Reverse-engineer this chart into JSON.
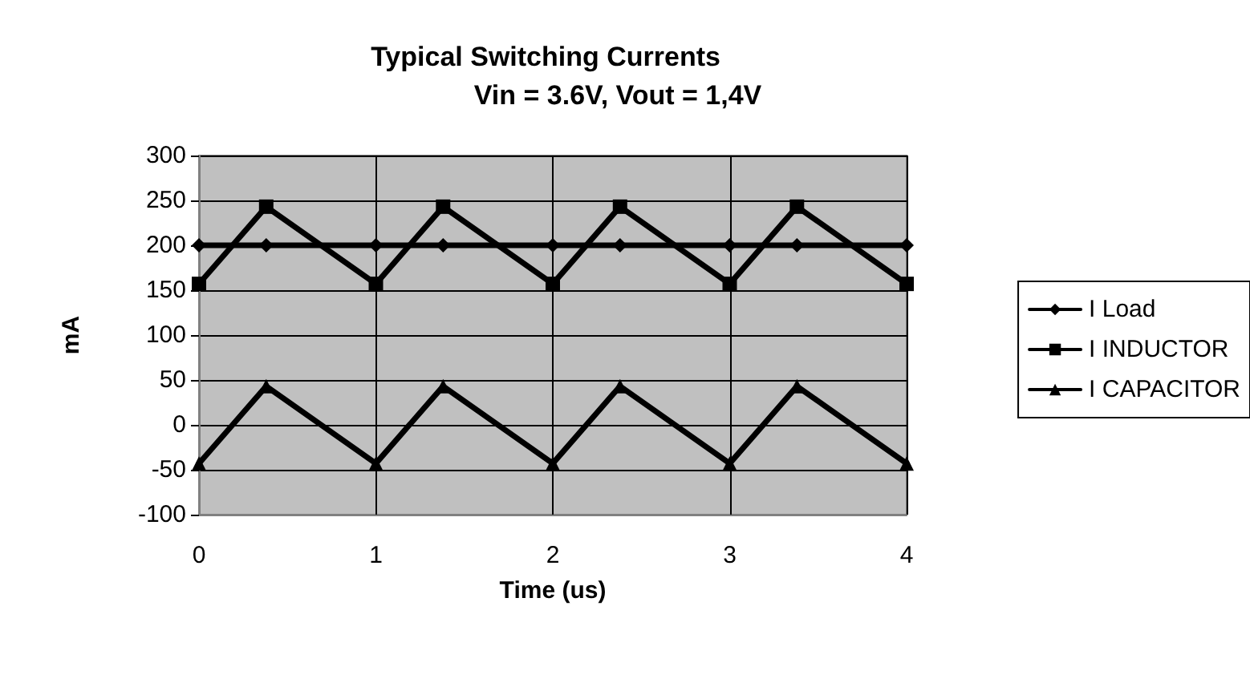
{
  "chart_data": {
    "type": "line",
    "title": "Typical Switching Currents",
    "subtitle": "Vin = 3.6V, Vout = 1,4V",
    "xlabel": "Time (us)",
    "ylabel": "mA",
    "x": [
      0,
      0.38,
      1,
      1.38,
      2,
      2.38,
      3,
      3.38,
      4
    ],
    "series": [
      {
        "name": "I Load",
        "color": "#000000",
        "marker": "diamond",
        "values": [
          200,
          200,
          200,
          200,
          200,
          200,
          200,
          200,
          200
        ]
      },
      {
        "name": "I INDUCTOR",
        "color": "#000000",
        "marker": "square",
        "values": [
          157,
          243,
          157,
          243,
          157,
          243,
          157,
          243,
          157
        ]
      },
      {
        "name": "I CAPACITOR",
        "color": "#000000",
        "marker": "triangle",
        "values": [
          -43,
          43,
          -43,
          43,
          -43,
          43,
          -43,
          43,
          -43
        ]
      }
    ],
    "xlim": [
      0,
      4
    ],
    "xticks": [
      0,
      1,
      2,
      3,
      4
    ],
    "ylim": [
      -100,
      300
    ],
    "yticks": [
      -100,
      -50,
      0,
      50,
      100,
      150,
      200,
      250,
      300
    ],
    "grid": true,
    "legend": "right",
    "line_style": "solid"
  }
}
